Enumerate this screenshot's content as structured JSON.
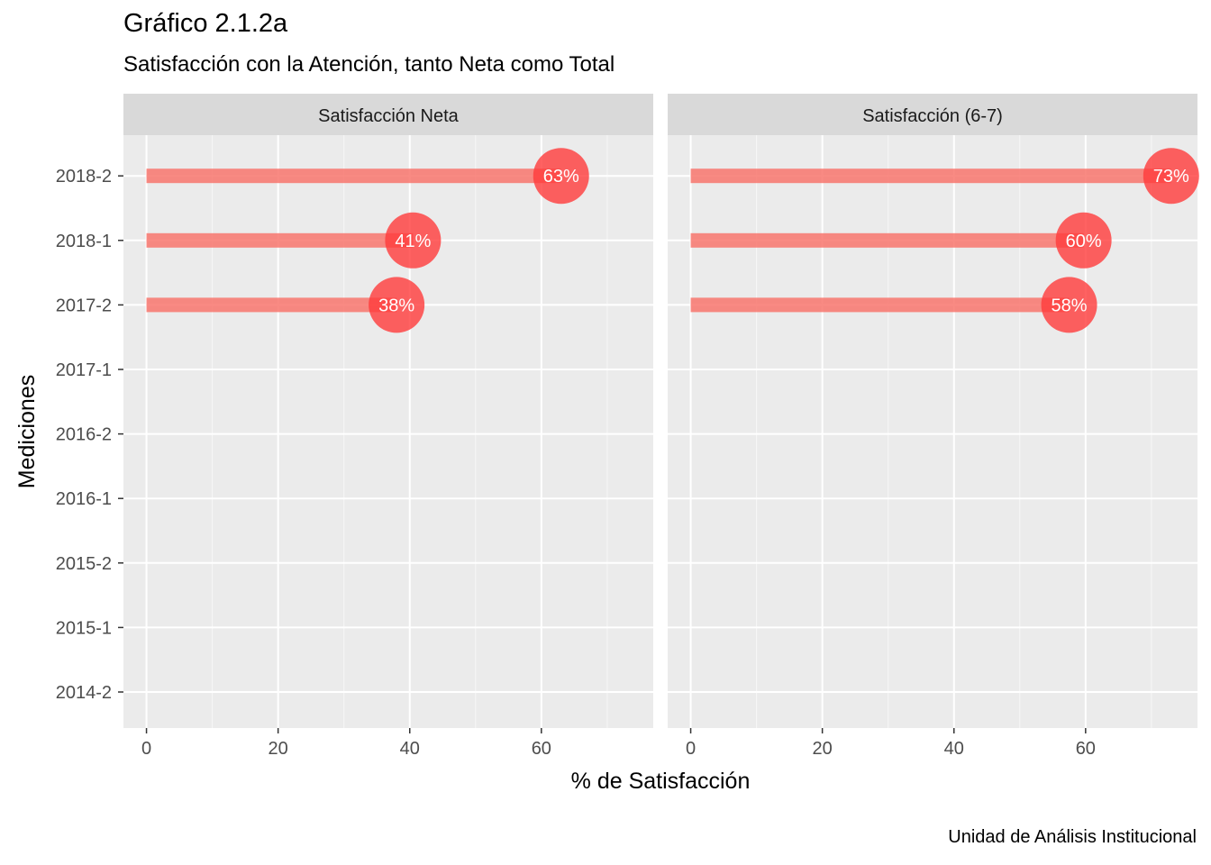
{
  "chart_data": {
    "type": "bar",
    "title": "Gráfico 2.1.2a",
    "subtitle": "Satisfacción con la Atención, tanto Neta como Total",
    "caption": "Unidad de Análisis Institucional",
    "xlabel": "% de Satisfacción",
    "ylabel": "Mediciones",
    "categories": [
      "2014-2",
      "2015-1",
      "2015-2",
      "2016-1",
      "2016-2",
      "2017-1",
      "2017-2",
      "2018-1",
      "2018-2"
    ],
    "xlim": [
      -3.5,
      77
    ],
    "x_ticks": [
      0,
      20,
      40,
      60
    ],
    "x_tick_labels": [
      "0",
      "20",
      "40",
      "60"
    ],
    "grid": true,
    "colors": {
      "bar": "#f8766d",
      "point": "#ff3b3b",
      "panel_bg": "#ebebeb",
      "strip_bg": "#d9d9d9",
      "grid": "#ffffff",
      "label_text": "#ffffff",
      "axis_text": "#4d4d4d"
    },
    "panels": [
      {
        "strip": "Satisfacción Neta",
        "points": [
          {
            "category": "2018-2",
            "value": 63,
            "label": "63%"
          },
          {
            "category": "2018-1",
            "value": 40.5,
            "label": "41%"
          },
          {
            "category": "2017-2",
            "value": 38,
            "label": "38%"
          }
        ]
      },
      {
        "strip": "Satisfacción (6-7)",
        "points": [
          {
            "category": "2018-2",
            "value": 73,
            "label": "73%"
          },
          {
            "category": "2018-1",
            "value": 59.7,
            "label": "60%"
          },
          {
            "category": "2017-2",
            "value": 57.5,
            "label": "58%"
          }
        ]
      }
    ]
  }
}
